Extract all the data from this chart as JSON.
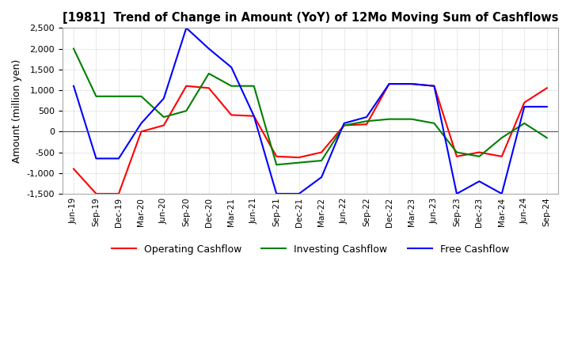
{
  "title": "[1981]  Trend of Change in Amount (YoY) of 12Mo Moving Sum of Cashflows",
  "ylabel": "Amount (million yen)",
  "ylim": [
    -1500,
    2500
  ],
  "yticks": [
    -1500,
    -1000,
    -500,
    0,
    500,
    1000,
    1500,
    2000,
    2500
  ],
  "x_labels": [
    "Jun-19",
    "Sep-19",
    "Dec-19",
    "Mar-20",
    "Jun-20",
    "Sep-20",
    "Dec-20",
    "Mar-21",
    "Jun-21",
    "Sep-21",
    "Dec-21",
    "Mar-22",
    "Jun-22",
    "Sep-22",
    "Dec-22",
    "Mar-23",
    "Jun-23",
    "Sep-23",
    "Dec-23",
    "Mar-24",
    "Jun-24",
    "Sep-24"
  ],
  "operating": [
    -900,
    -1500,
    -1500,
    0,
    150,
    1100,
    1050,
    400,
    375,
    -600,
    -625,
    -500,
    150,
    175,
    1150,
    1150,
    1100,
    -600,
    -500,
    -600,
    700,
    1050
  ],
  "investing": [
    2000,
    850,
    850,
    850,
    350,
    500,
    1400,
    1100,
    1100,
    -800,
    -750,
    -700,
    150,
    250,
    300,
    300,
    200,
    -500,
    -600,
    -150,
    200,
    -150
  ],
  "free": [
    1100,
    -650,
    -650,
    200,
    800,
    2500,
    2000,
    1550,
    375,
    -1500,
    -1500,
    -1100,
    200,
    350,
    1150,
    1150,
    1100,
    -1500,
    -1200,
    -1500,
    600,
    600
  ],
  "operating_color": "#ff0000",
  "investing_color": "#008000",
  "free_color": "#0000ff",
  "background_color": "#ffffff",
  "grid_color": "#b0b0b0"
}
